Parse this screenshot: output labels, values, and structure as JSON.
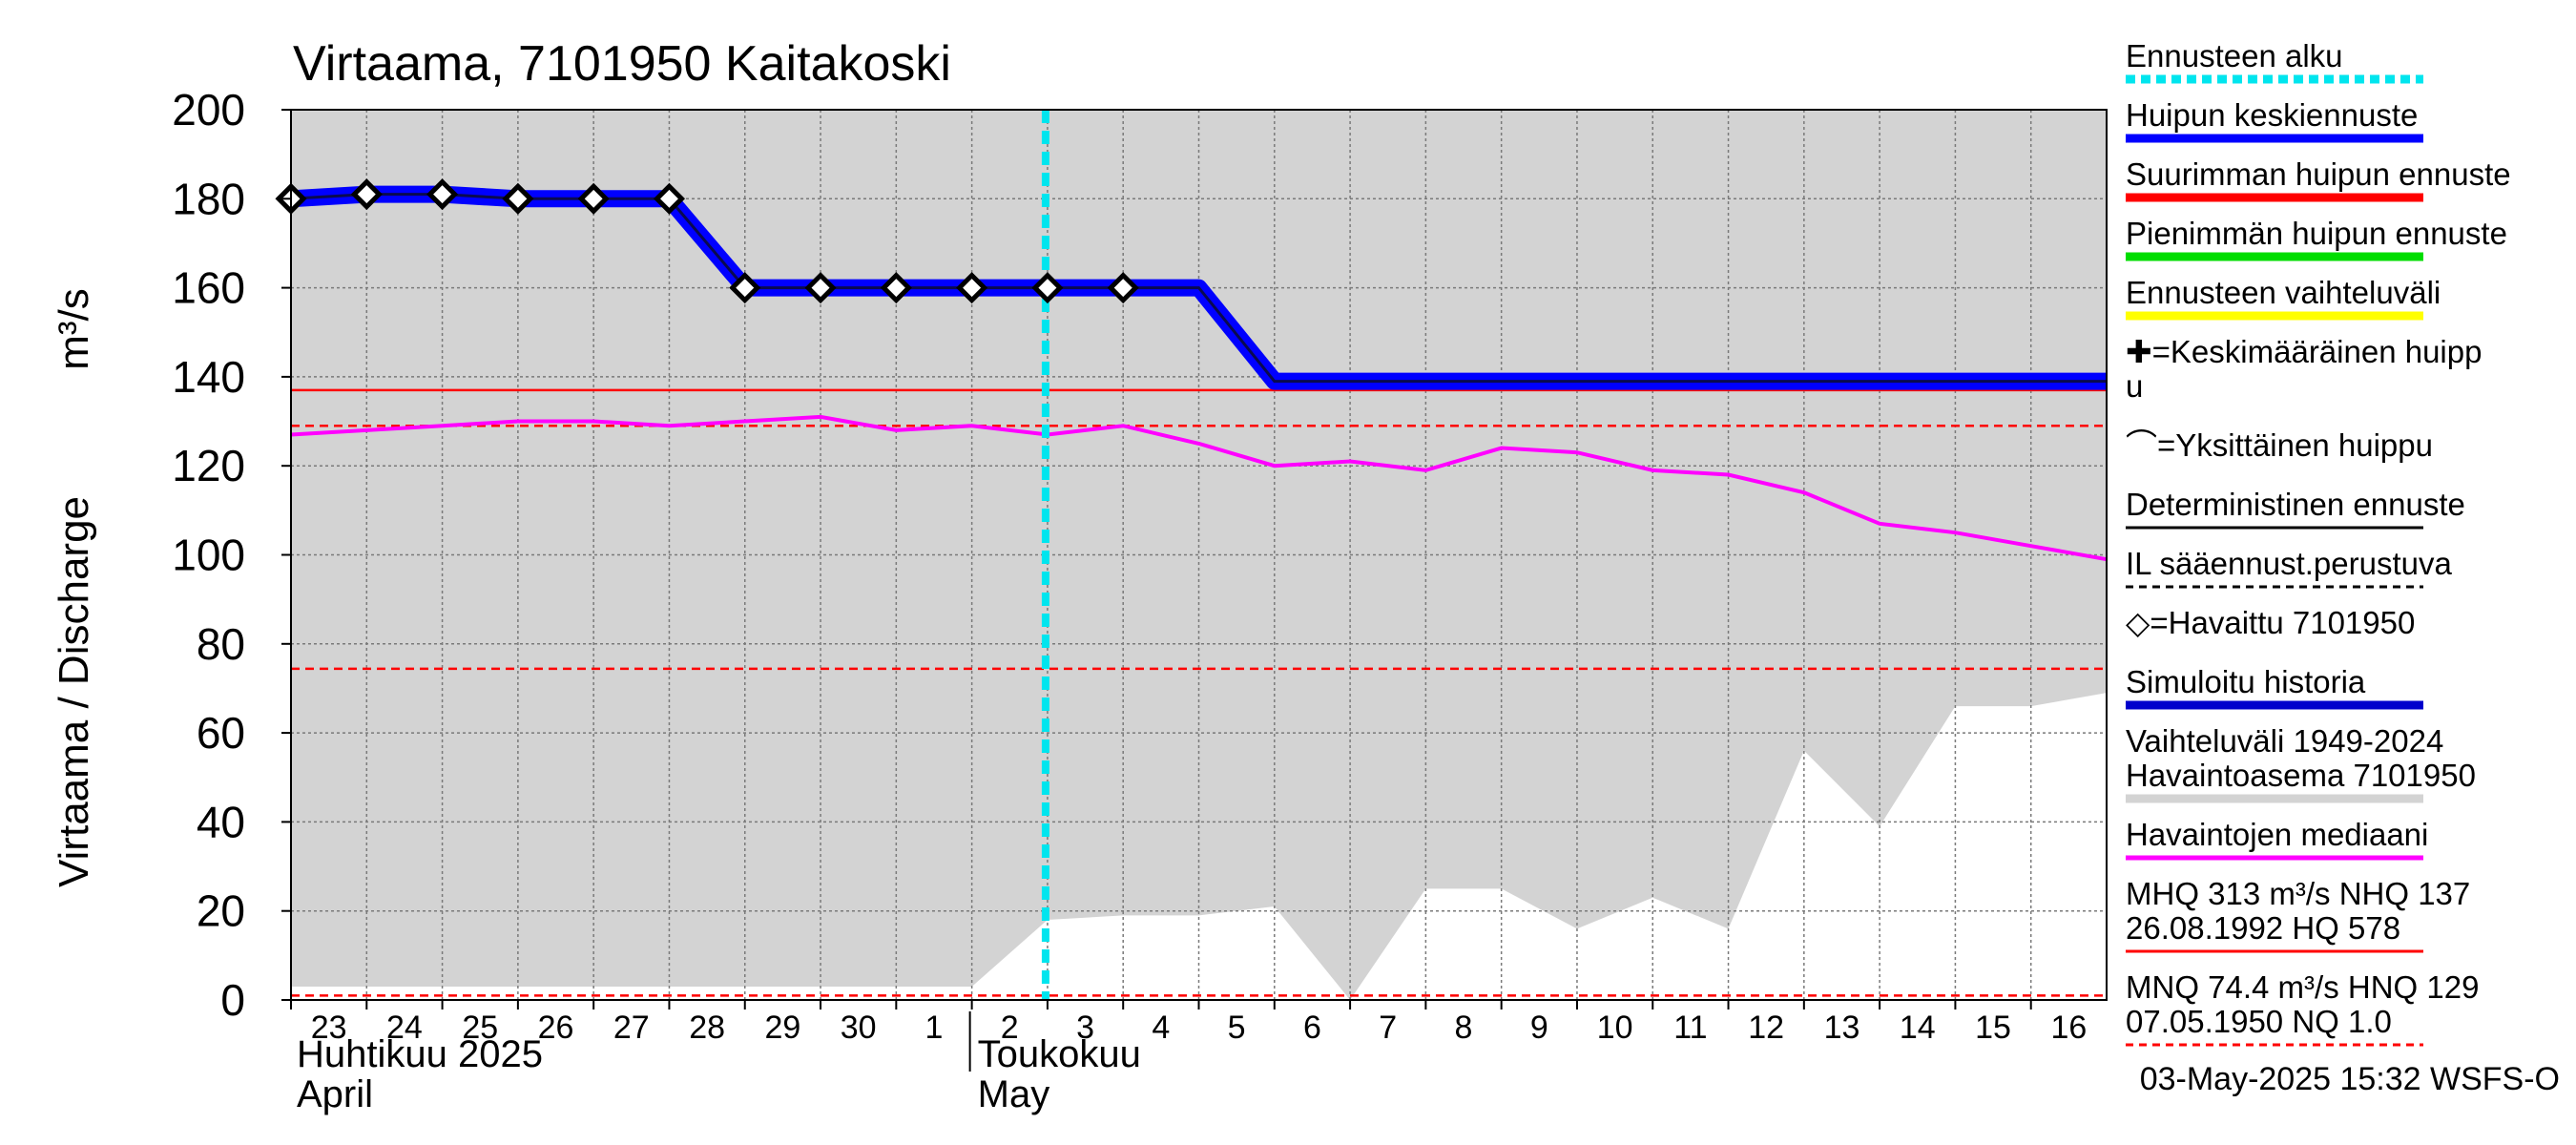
{
  "chart_data": {
    "type": "line",
    "title": "Virtaama, 7101950 Kaitakoski",
    "ylabel": "Virtaama / Discharge",
    "yunit": "m³/s",
    "ylim": [
      0,
      200
    ],
    "yticks": [
      0,
      20,
      40,
      60,
      80,
      100,
      120,
      140,
      160,
      180,
      200
    ],
    "xlim": [
      0,
      24
    ],
    "day_labels": [
      "23",
      "24",
      "25",
      "26",
      "27",
      "28",
      "29",
      "30",
      "1",
      "2",
      "3",
      "4",
      "5",
      "6",
      "7",
      "8",
      "9",
      "10",
      "11",
      "12",
      "13",
      "14",
      "15",
      "16"
    ],
    "month_labels": [
      {
        "fi": "Huhtikuu  2025",
        "en": "April",
        "day_index": 0
      },
      {
        "fi": "Toukokuu",
        "en": "May",
        "day_index": 9
      }
    ],
    "forecast_start_day": 10,
    "series": [
      {
        "name": "Vaihteluväli 1949-2024 Havaintoasema 7101950",
        "kind": "band",
        "color": "#d3d3d3",
        "x": [
          0,
          1,
          2,
          3,
          4,
          5,
          6,
          7,
          8,
          9,
          10,
          11,
          12,
          13,
          14,
          15,
          16,
          17,
          18,
          19,
          20,
          21,
          22,
          23,
          24
        ],
        "upper": [
          200,
          200,
          200,
          200,
          200,
          200,
          200,
          200,
          200,
          200,
          200,
          200,
          200,
          200,
          200,
          200,
          200,
          200,
          200,
          200,
          200,
          200,
          200,
          200,
          200
        ],
        "lower": [
          3,
          3,
          3,
          3,
          3,
          3,
          3,
          3,
          3,
          3,
          18,
          19,
          19,
          21,
          0,
          25,
          25,
          16,
          23,
          16,
          56,
          39,
          66,
          66,
          69
        ]
      },
      {
        "name": "Havaintojen mediaani",
        "kind": "line",
        "color": "#ff00ff",
        "x": [
          0,
          1,
          2,
          3,
          4,
          5,
          6,
          7,
          8,
          9,
          10,
          11,
          12,
          13,
          14,
          15,
          16,
          17,
          18,
          19,
          20,
          21,
          22,
          23,
          24
        ],
        "y": [
          127,
          128,
          129,
          130,
          130,
          129,
          130,
          131,
          128,
          129,
          127,
          129,
          125,
          120,
          121,
          119,
          124,
          123,
          119,
          118,
          114,
          107,
          105,
          102,
          99
        ]
      },
      {
        "name": "Huipun keskiennuste",
        "kind": "line",
        "color": "#0000ff",
        "x": [
          0,
          1,
          2,
          3,
          4,
          5,
          6,
          7,
          8,
          9,
          10,
          11,
          12,
          13,
          24
        ],
        "y": [
          180,
          181,
          181,
          180,
          180,
          180,
          160,
          160,
          160,
          160,
          160,
          160,
          160,
          139,
          139
        ]
      },
      {
        "name": "Havaittu 7101950",
        "kind": "markers",
        "color": "#000000",
        "x": [
          0,
          1,
          2,
          3,
          4,
          5,
          6,
          7,
          8,
          9,
          10,
          11
        ],
        "y": [
          180,
          181,
          181,
          180,
          180,
          180,
          160,
          160,
          160,
          160,
          160,
          160
        ]
      }
    ],
    "reference_lines": [
      {
        "name": "NHQ",
        "value": 137,
        "color": "#ff0000",
        "style": "solid"
      },
      {
        "name": "HNQ",
        "value": 129,
        "color": "#ff0000",
        "style": "dashed"
      },
      {
        "name": "MNQ",
        "value": 74.4,
        "color": "#ff0000",
        "style": "dashed"
      },
      {
        "name": "NQ",
        "value": 1.0,
        "color": "#ff0000",
        "style": "dashed"
      }
    ]
  },
  "legend": [
    {
      "lines": [
        "Ennusteen alku"
      ],
      "color": "#00e5ee",
      "style": "dotted-thick"
    },
    {
      "lines": [
        "Huipun keskiennuste"
      ],
      "color": "#0000ff",
      "style": "thick"
    },
    {
      "lines": [
        "Suurimman huipun ennuste"
      ],
      "color": "#ff0000",
      "style": "thick"
    },
    {
      "lines": [
        "Pienimmän huipun ennuste"
      ],
      "color": "#00dd00",
      "style": "thick"
    },
    {
      "lines": [
        "Ennusteen vaihteluväli"
      ],
      "color": "#ffff00",
      "style": "thick"
    },
    {
      "lines": [
        "✚=Keskimääräinen huipp",
        "u"
      ],
      "color": "",
      "style": "none"
    },
    {
      "lines": [
        "⌒=Yksittäinen huippu"
      ],
      "color": "",
      "style": "none"
    },
    {
      "lines": [
        "Deterministinen ennuste"
      ],
      "color": "#000000",
      "style": "thin"
    },
    {
      "lines": [
        "IL sääennust.perustuva"
      ],
      "color": "#000000",
      "style": "dashed"
    },
    {
      "lines": [
        "◇=Havaittu 7101950"
      ],
      "color": "",
      "style": "none"
    },
    {
      "lines": [
        "Simuloitu historia"
      ],
      "color": "#0000cc",
      "style": "thick"
    },
    {
      "lines": [
        "Vaihteluväli 1949-2024",
        " Havaintoasema 7101950"
      ],
      "color": "#d3d3d3",
      "style": "thick"
    },
    {
      "lines": [
        "Havaintojen mediaani"
      ],
      "color": "#ff00ff",
      "style": "medium"
    },
    {
      "lines": [
        "MHQ  313 m³/s NHQ  137",
        "26.08.1992 HQ  578"
      ],
      "color": "#ff0000",
      "style": "thin"
    },
    {
      "lines": [
        "MNQ 74.4 m³/s HNQ  129",
        "07.05.1950 NQ  1.0"
      ],
      "color": "#ff0000",
      "style": "dashed"
    }
  ],
  "footer": "03-May-2025 15:32 WSFS-O"
}
